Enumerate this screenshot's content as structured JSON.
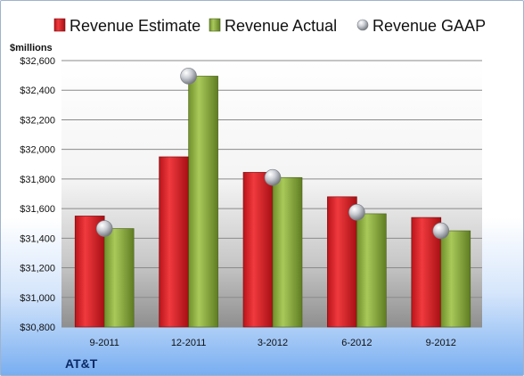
{
  "chart_data": {
    "type": "bar",
    "categories": [
      "9-2011",
      "12-2011",
      "3-2012",
      "6-2012",
      "9-2012"
    ],
    "series": [
      {
        "name": "Revenue Estimate",
        "kind": "bar",
        "color": "#d9262a",
        "values": [
          31550,
          31950,
          31845,
          31680,
          31540
        ]
      },
      {
        "name": "Revenue Actual",
        "kind": "bar",
        "color": "#8fb040",
        "values": [
          31465,
          32495,
          31810,
          31565,
          31450
        ]
      },
      {
        "name": "Revenue GAAP",
        "kind": "marker",
        "color": "#b8bcc4",
        "values": [
          31465,
          32495,
          31810,
          31575,
          31450
        ]
      }
    ],
    "ylabel": "$millions",
    "ylim": [
      30800,
      32600
    ],
    "yticks": [
      30800,
      31000,
      31200,
      31400,
      31600,
      31800,
      32000,
      32200,
      32400,
      32600
    ],
    "ytick_labels": [
      "$30,800",
      "$31,000",
      "$31,200",
      "$31,400",
      "$31,600",
      "$31,800",
      "$32,000",
      "$32,200",
      "$32,400",
      "$32,600"
    ],
    "grid": true,
    "legend_position": "top",
    "company": "AT&T"
  }
}
